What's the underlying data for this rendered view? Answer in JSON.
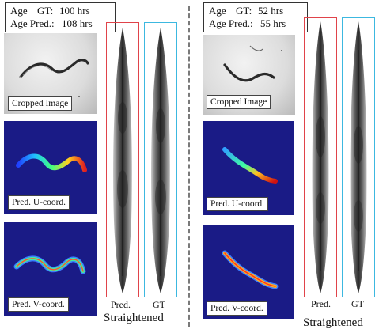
{
  "left": {
    "age_gt_label": "Age",
    "age_gt_key": "GT:",
    "age_gt_value": "100 hrs",
    "age_pred_label": "Age Pred.:",
    "age_pred_value": "108 hrs",
    "cropped_caption": "Cropped Image",
    "u_caption": "Pred. U-coord.",
    "v_caption": "Pred. V-coord.",
    "pred_label": "Pred.",
    "gt_label": "GT",
    "section_title": "Straightened"
  },
  "right": {
    "age_gt_label": "Age",
    "age_gt_key": "GT:",
    "age_gt_value": "52 hrs",
    "age_pred_label": "Age Pred.:",
    "age_pred_value": "55 hrs",
    "cropped_caption": "Cropped Image",
    "u_caption": "Pred. U-coord.",
    "v_caption": "Pred. V-coord.",
    "pred_label": "Pred.",
    "gt_label": "GT",
    "section_title": "Straightened"
  },
  "colors": {
    "pred_border": "#e0434a",
    "gt_border": "#3cb8e0",
    "coord_background": "#1a1b86",
    "divider": "#7a7a7a"
  }
}
